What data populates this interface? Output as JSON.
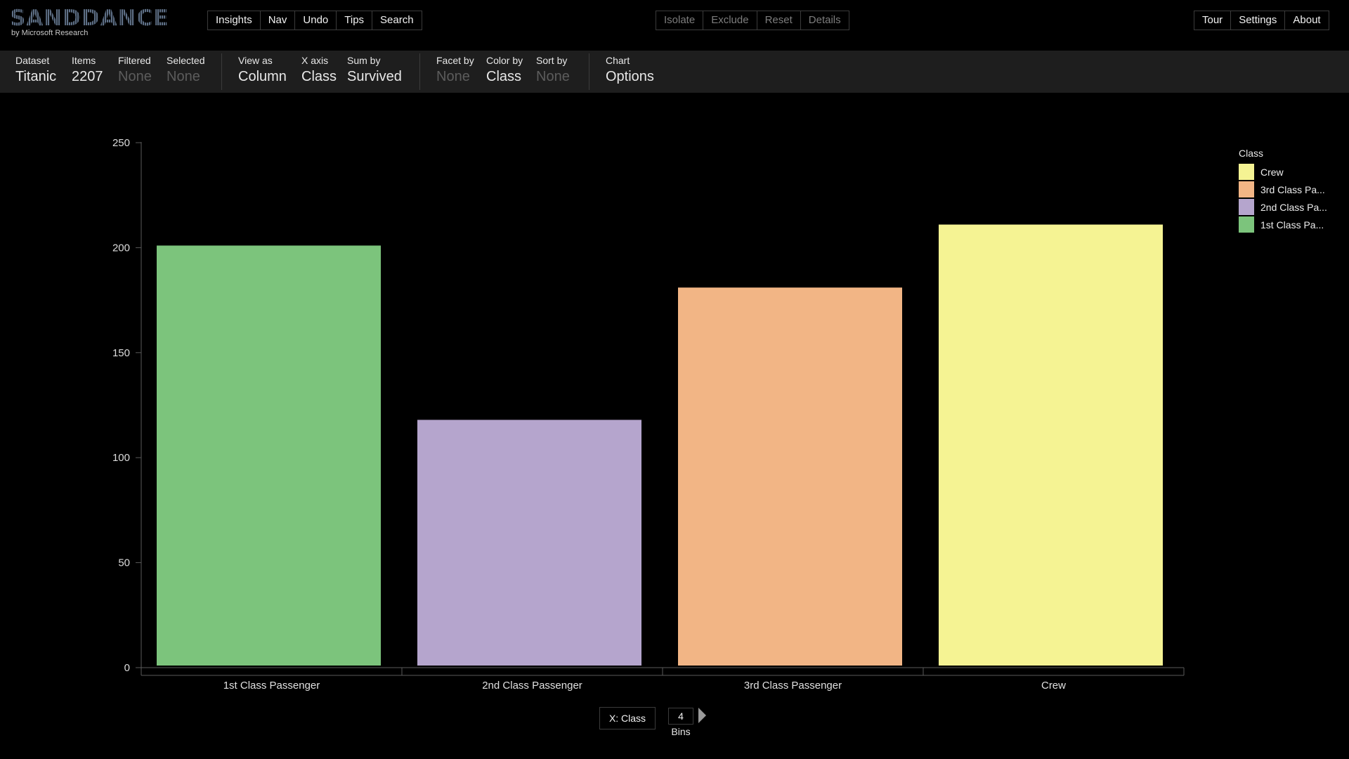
{
  "app": {
    "logo": "SANDDANCE",
    "subtitle": "by Microsoft Research"
  },
  "top_buttons": {
    "left": [
      "Insights",
      "Nav",
      "Undo",
      "Tips",
      "Search"
    ],
    "center": [
      "Isolate",
      "Exclude",
      "Reset",
      "Details"
    ],
    "right": [
      "Tour",
      "Settings",
      "About"
    ]
  },
  "toolbar": {
    "dataset": {
      "label": "Dataset",
      "value": "Titanic"
    },
    "items": {
      "label": "Items",
      "value": "2207"
    },
    "filtered": {
      "label": "Filtered",
      "value": "None"
    },
    "selected": {
      "label": "Selected",
      "value": "None"
    },
    "view_as": {
      "label": "View as",
      "value": "Column"
    },
    "x_axis": {
      "label": "X axis",
      "value": "Class"
    },
    "sum_by": {
      "label": "Sum by",
      "value": "Survived"
    },
    "facet_by": {
      "label": "Facet by",
      "value": "None"
    },
    "color_by": {
      "label": "Color by",
      "value": "Class"
    },
    "sort_by": {
      "label": "Sort by",
      "value": "None"
    },
    "chart": {
      "label": "Chart",
      "value": "Options"
    }
  },
  "chart_data": {
    "type": "bar",
    "categories": [
      "1st Class Passenger",
      "2nd Class Passenger",
      "3rd Class Passenger",
      "Crew"
    ],
    "values": [
      201,
      118,
      181,
      211
    ],
    "colors": [
      "#7cc47c",
      "#b5a5cd",
      "#f2b585",
      "#f5f393"
    ],
    "ylim": [
      0,
      250
    ],
    "yticks": [
      0,
      50,
      100,
      150,
      200,
      250
    ],
    "grid": false,
    "legend_position": "top-right"
  },
  "legend": {
    "title": "Class",
    "items": [
      {
        "label": "Crew",
        "color": "#f5f393"
      },
      {
        "label": "3rd Class Pa...",
        "color": "#f2b585"
      },
      {
        "label": "2nd Class Pa...",
        "color": "#b5a5cd"
      },
      {
        "label": "1st Class Pa...",
        "color": "#7cc47c"
      }
    ]
  },
  "bottom": {
    "x_button": "X: Class",
    "bins_value": "4",
    "bins_label": "Bins"
  }
}
